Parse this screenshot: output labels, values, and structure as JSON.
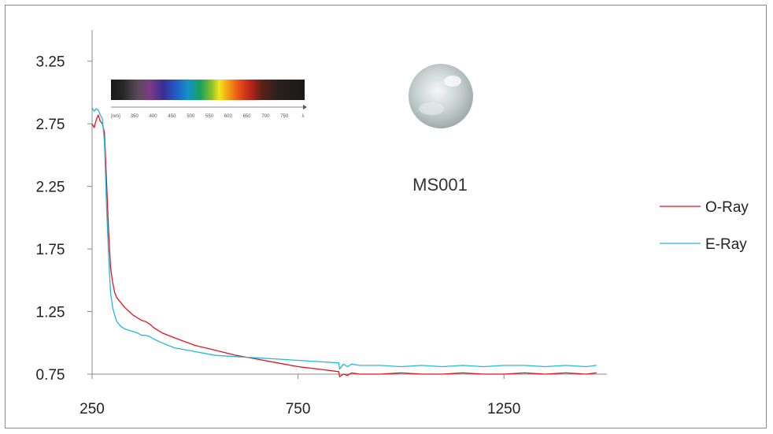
{
  "chart_data": {
    "type": "line",
    "title": "",
    "xlabel": "",
    "ylabel": "",
    "xlim": [
      250,
      1500
    ],
    "ylim": [
      0.75,
      3.5
    ],
    "x_ticks": [
      250,
      750,
      1250
    ],
    "y_ticks": [
      0.75,
      1.25,
      1.75,
      2.25,
      2.75,
      3.25
    ],
    "x_tick_labels": [
      "250",
      "750",
      "1250"
    ],
    "y_tick_labels": [
      "0.75",
      "1.25",
      "1.75",
      "2.25",
      "2.75",
      "3.25"
    ],
    "grid": false,
    "legend_position": "right",
    "series": [
      {
        "name": "O-Ray",
        "color": "#e0141e",
        "x": [
          250,
          255,
          260,
          265,
          270,
          275,
          280,
          285,
          290,
          295,
          300,
          305,
          310,
          320,
          330,
          340,
          350,
          360,
          370,
          380,
          390,
          400,
          420,
          450,
          500,
          550,
          600,
          650,
          700,
          750,
          800,
          849,
          851,
          860,
          870,
          880,
          900,
          950,
          1000,
          1050,
          1100,
          1150,
          1200,
          1250,
          1300,
          1350,
          1400,
          1450,
          1475
        ],
        "y": [
          2.75,
          2.72,
          2.78,
          2.82,
          2.77,
          2.75,
          2.68,
          2.3,
          1.9,
          1.6,
          1.48,
          1.4,
          1.36,
          1.32,
          1.28,
          1.25,
          1.22,
          1.2,
          1.18,
          1.17,
          1.15,
          1.12,
          1.08,
          1.04,
          0.98,
          0.94,
          0.9,
          0.87,
          0.84,
          0.81,
          0.79,
          0.77,
          0.73,
          0.75,
          0.74,
          0.76,
          0.75,
          0.75,
          0.76,
          0.75,
          0.75,
          0.76,
          0.75,
          0.75,
          0.76,
          0.75,
          0.76,
          0.75,
          0.76
        ]
      },
      {
        "name": "E-Ray",
        "color": "#23b8e0",
        "x": [
          250,
          255,
          260,
          265,
          270,
          275,
          280,
          285,
          290,
          295,
          300,
          305,
          310,
          320,
          330,
          340,
          350,
          360,
          370,
          380,
          390,
          400,
          420,
          450,
          500,
          550,
          600,
          650,
          700,
          750,
          800,
          849,
          851,
          860,
          870,
          880,
          900,
          950,
          1000,
          1050,
          1100,
          1150,
          1200,
          1250,
          1300,
          1350,
          1400,
          1450,
          1475
        ],
        "y": [
          2.88,
          2.85,
          2.87,
          2.86,
          2.82,
          2.79,
          2.6,
          2.1,
          1.7,
          1.4,
          1.28,
          1.22,
          1.17,
          1.13,
          1.11,
          1.1,
          1.09,
          1.08,
          1.06,
          1.06,
          1.05,
          1.03,
          1.0,
          0.96,
          0.93,
          0.9,
          0.89,
          0.88,
          0.87,
          0.86,
          0.85,
          0.84,
          0.79,
          0.83,
          0.81,
          0.83,
          0.82,
          0.82,
          0.81,
          0.82,
          0.81,
          0.82,
          0.81,
          0.82,
          0.82,
          0.81,
          0.82,
          0.81,
          0.82
        ]
      }
    ],
    "annotations": [
      "MS001"
    ],
    "inset_spectrum_labels": [
      "[nm]",
      "350",
      "400",
      "450",
      "500",
      "550",
      "600",
      "650",
      "700",
      "750",
      "λ"
    ]
  },
  "colors": {
    "axis": "#8a8a8a",
    "background": "#ffffff"
  }
}
